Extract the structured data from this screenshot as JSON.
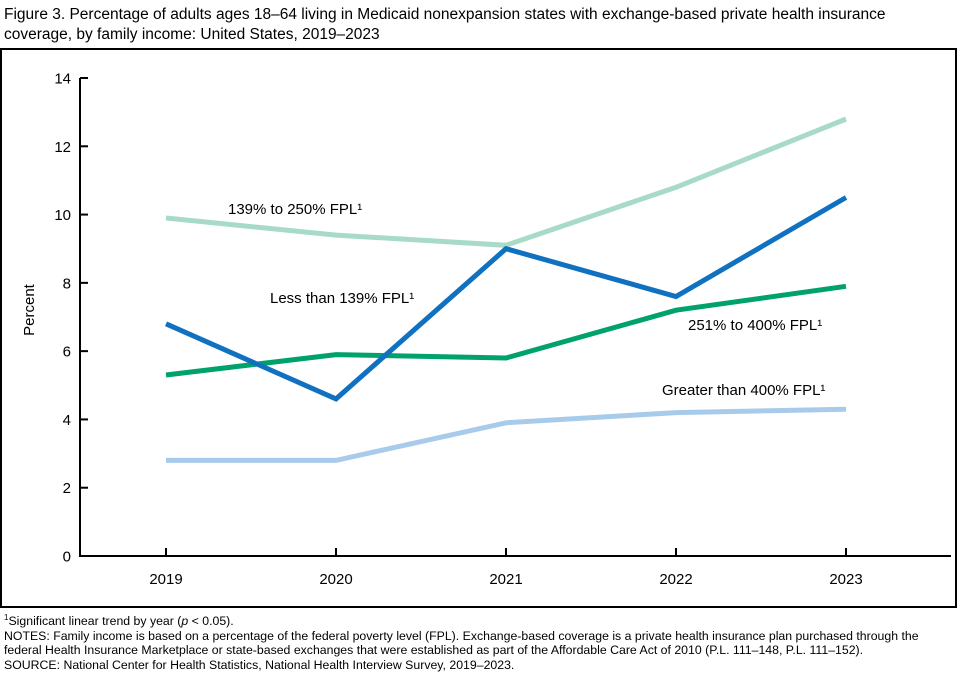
{
  "title": "Figure 3. Percentage of adults ages 18–64 living in Medicaid nonexpansion states with exchange-based private health insurance coverage, by family income: United States, 2019–2023",
  "chart_data": {
    "type": "line",
    "x": [
      2019,
      2020,
      2021,
      2022,
      2023
    ],
    "series": [
      {
        "name": "139% to 250% FPL",
        "label": "139% to 250% FPL¹",
        "color": "#a7dbc8",
        "values": [
          9.9,
          9.4,
          9.1,
          10.8,
          12.8
        ]
      },
      {
        "name": "Less than 139% FPL",
        "label": "Less than 139% FPL¹",
        "color": "#1071c1",
        "values": [
          6.8,
          4.6,
          9.0,
          7.6,
          10.5
        ]
      },
      {
        "name": "251% to 400% FPL",
        "label": "251% to 400% FPL¹",
        "color": "#00a26c",
        "values": [
          5.3,
          5.9,
          5.8,
          7.2,
          7.9
        ]
      },
      {
        "name": "Greater than 400% FPL",
        "label": "Greater than 400% FPL¹",
        "color": "#a8cbec",
        "values": [
          2.8,
          2.8,
          3.9,
          4.2,
          4.3
        ]
      }
    ],
    "xlabel": "",
    "ylabel": "Percent",
    "ylim": [
      0,
      14
    ],
    "ytick_step": 2,
    "grid": false,
    "legend": "inline-labels",
    "axis_color": "#000000"
  },
  "footnotes": {
    "trend": {
      "sup": "1",
      "before_p": "Significant linear trend by year (",
      "p": "p",
      "after_p": " < 0.05)."
    },
    "notes": "NOTES: Family income is based on a percentage of the federal poverty level (FPL). Exchange-based coverage is a private health insurance plan purchased through the federal Health Insurance Marketplace or state-based exchanges that were established as part of the Affordable Care Act of 2010 (P.L. 111–148, P.L. 111–152).",
    "source": "SOURCE: National Center for Health Statistics, National Health Interview Survey, 2019–2023."
  }
}
